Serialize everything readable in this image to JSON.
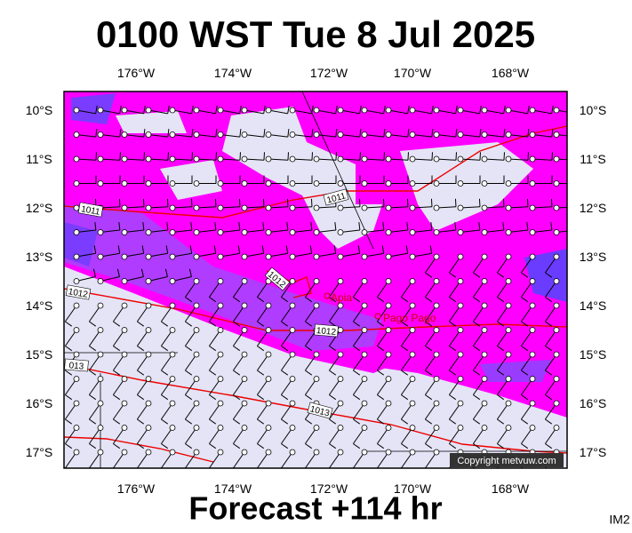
{
  "title": "0100 WST Tue 8 Jul 2025",
  "footer": "Forecast +114 hr",
  "corner_label": "IM2",
  "copyright": "Copyright metvuw.com",
  "longitude_labels": [
    "176°W",
    "174°W",
    "172°W",
    "170°W",
    "168°W"
  ],
  "latitude_labels": [
    "10°S",
    "11°S",
    "12°S",
    "13°S",
    "14°S",
    "15°S",
    "16°S",
    "17°S"
  ],
  "places": [
    "Apia",
    "Pago Pago"
  ],
  "isobar_labels": [
    "1011",
    "1011",
    "1012",
    "1012",
    "1012",
    "013",
    "1013"
  ]
}
